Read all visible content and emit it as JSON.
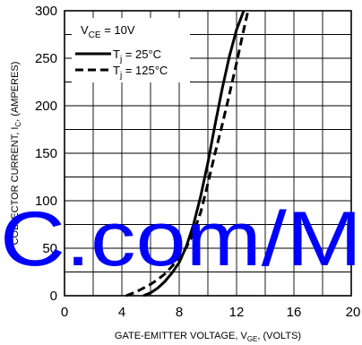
{
  "chart_data": {
    "type": "line",
    "title": "",
    "xlabel": {
      "main": "GATE-EMITTER VOLTAGE, V",
      "sub": "GE",
      "tail": ", (VOLTS)"
    },
    "ylabel": {
      "main": "COLLECTOR CURRENT, I",
      "sub": "C",
      "tail": ", (AMPERES)"
    },
    "xlim": [
      0,
      20
    ],
    "ylim": [
      0,
      300
    ],
    "x_ticks": [
      "0",
      "4",
      "8",
      "12",
      "16",
      "20"
    ],
    "y_ticks": [
      "0",
      "50",
      "100",
      "150",
      "200",
      "250",
      "300"
    ],
    "x_tick_values": [
      0,
      4,
      8,
      12,
      16,
      20
    ],
    "y_tick_values": [
      0,
      50,
      100,
      150,
      200,
      250,
      300
    ],
    "x_grid_values": [
      0,
      2,
      4,
      6,
      8,
      10,
      12,
      14,
      16,
      18,
      20
    ],
    "y_grid_values": [
      0,
      25,
      50,
      75,
      100,
      125,
      150,
      175,
      200,
      225,
      250,
      275,
      300
    ],
    "grid": true,
    "legend": {
      "position": "top-left",
      "condition": {
        "main": "V",
        "sub": "CE",
        "tail": " = 10V"
      }
    },
    "series": [
      {
        "legend_main": "T",
        "legend_sub": "j",
        "legend_tail": " = 25°C",
        "style": "solid",
        "x": [
          5.5,
          6.0,
          6.5,
          7.0,
          7.5,
          8.0,
          8.5,
          9.0,
          9.5,
          10.0,
          10.5,
          11.0,
          11.5,
          12.0,
          12.5
        ],
        "y": [
          0,
          3,
          8,
          15,
          24,
          35,
          52,
          75,
          105,
          140,
          180,
          218,
          252,
          280,
          300
        ]
      },
      {
        "legend_main": "T",
        "legend_sub": "j",
        "legend_tail": " = 125°C",
        "style": "dashed",
        "x": [
          4.3,
          5.0,
          5.5,
          6.0,
          6.5,
          7.0,
          7.5,
          8.0,
          8.5,
          9.0,
          9.5,
          10.0,
          10.5,
          11.0,
          11.5,
          12.0,
          12.5,
          12.8
        ],
        "y": [
          0,
          4,
          8,
          12,
          17,
          23,
          31,
          40,
          51,
          66,
          88,
          118,
          150,
          180,
          212,
          245,
          280,
          300
        ]
      }
    ],
    "watermark": "C.com/M"
  }
}
